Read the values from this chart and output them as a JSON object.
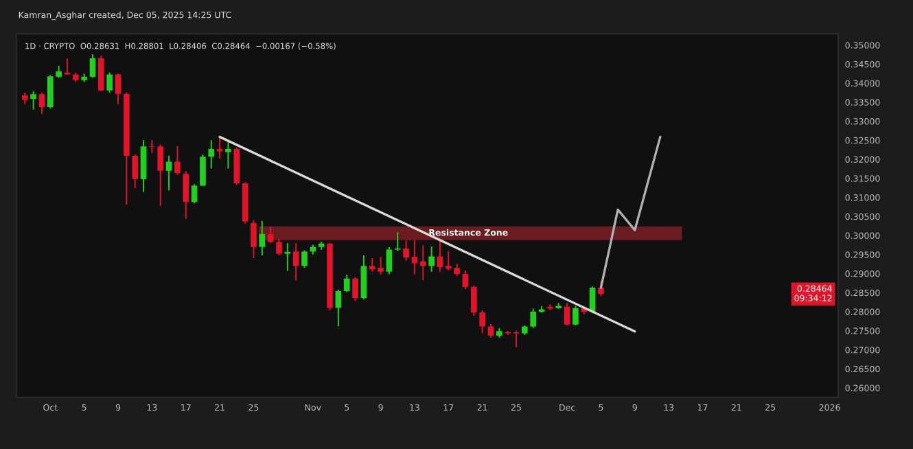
{
  "chart_data": {
    "type": "candlestick",
    "title": "Kamran_Asghar created, Dec 05, 2025 14:25 UTC",
    "subtitle": "1D · CRYPTO  O0.28631  H0.28801  L0.28406  C0.28464  −0.00167 (−0.58%)",
    "x": [
      "2025-09-28",
      "2025-09-29",
      "2025-09-30",
      "2025-10-01",
      "2025-10-02",
      "2025-10-03",
      "2025-10-04",
      "2025-10-05",
      "2025-10-06",
      "2025-10-07",
      "2025-10-08",
      "2025-10-09",
      "2025-10-10",
      "2025-10-11",
      "2025-10-12",
      "2025-10-13",
      "2025-10-14",
      "2025-10-15",
      "2025-10-16",
      "2025-10-17",
      "2025-10-18",
      "2025-10-19",
      "2025-10-20",
      "2025-10-21",
      "2025-10-22",
      "2025-10-23",
      "2025-10-24",
      "2025-10-25",
      "2025-10-26",
      "2025-10-27",
      "2025-10-28",
      "2025-10-29",
      "2025-10-30",
      "2025-10-31",
      "2025-11-01",
      "2025-11-02",
      "2025-11-03",
      "2025-11-04",
      "2025-11-05",
      "2025-11-06",
      "2025-11-07",
      "2025-11-08",
      "2025-11-09",
      "2025-11-10",
      "2025-11-11",
      "2025-11-12",
      "2025-11-13",
      "2025-11-14",
      "2025-11-15",
      "2025-11-16",
      "2025-11-17",
      "2025-11-18",
      "2025-11-19",
      "2025-11-20",
      "2025-11-21",
      "2025-11-22",
      "2025-11-23",
      "2025-11-24",
      "2025-11-25",
      "2025-11-26",
      "2025-11-27",
      "2025-11-28",
      "2025-11-29",
      "2025-11-30",
      "2025-12-01",
      "2025-12-02",
      "2025-12-03",
      "2025-12-04",
      "2025-12-05"
    ],
    "ohlc": [
      [
        0.3368,
        0.3375,
        0.3345,
        0.3356
      ],
      [
        0.3359,
        0.3379,
        0.3331,
        0.3371
      ],
      [
        0.3371,
        0.3375,
        0.3319,
        0.3337
      ],
      [
        0.3337,
        0.3421,
        0.3333,
        0.3418
      ],
      [
        0.3417,
        0.3446,
        0.3414,
        0.3431
      ],
      [
        0.3428,
        0.3465,
        0.3422,
        0.3423
      ],
      [
        0.3423,
        0.3428,
        0.3403,
        0.3408
      ],
      [
        0.3408,
        0.3425,
        0.3403,
        0.3417
      ],
      [
        0.3417,
        0.3476,
        0.3414,
        0.3465
      ],
      [
        0.3465,
        0.3473,
        0.3379,
        0.3381
      ],
      [
        0.3381,
        0.3428,
        0.3375,
        0.3423
      ],
      [
        0.3423,
        0.3425,
        0.3345,
        0.3372
      ],
      [
        0.3372,
        0.3375,
        0.3081,
        0.3209
      ],
      [
        0.3209,
        0.3213,
        0.3125,
        0.3148
      ],
      [
        0.3148,
        0.325,
        0.3114,
        0.3234
      ],
      [
        0.3234,
        0.325,
        0.3217,
        0.3232
      ],
      [
        0.3234,
        0.3239,
        0.3078,
        0.317
      ],
      [
        0.317,
        0.3209,
        0.3118,
        0.3194
      ],
      [
        0.3194,
        0.3235,
        0.3159,
        0.3164
      ],
      [
        0.3162,
        0.3169,
        0.3044,
        0.3088
      ],
      [
        0.3088,
        0.3135,
        0.3084,
        0.3131
      ],
      [
        0.3131,
        0.3213,
        0.313,
        0.3207
      ],
      [
        0.3207,
        0.325,
        0.3176,
        0.3227
      ],
      [
        0.3227,
        0.3261,
        0.3202,
        0.3221
      ],
      [
        0.3219,
        0.325,
        0.3176,
        0.3227
      ],
      [
        0.3227,
        0.3231,
        0.3133,
        0.3137
      ],
      [
        0.3137,
        0.314,
        0.3031,
        0.3037
      ],
      [
        0.3033,
        0.3041,
        0.294,
        0.297
      ],
      [
        0.297,
        0.3038,
        0.2948,
        0.3004
      ],
      [
        0.3004,
        0.3023,
        0.298,
        0.2983
      ],
      [
        0.2983,
        0.2991,
        0.2948,
        0.2952
      ],
      [
        0.2952,
        0.298,
        0.2907,
        0.2957
      ],
      [
        0.2958,
        0.298,
        0.2882,
        0.292
      ],
      [
        0.292,
        0.2961,
        0.2915,
        0.2958
      ],
      [
        0.2958,
        0.2976,
        0.295,
        0.297
      ],
      [
        0.297,
        0.2984,
        0.2962,
        0.2979
      ],
      [
        0.2979,
        0.298,
        0.2804,
        0.281
      ],
      [
        0.281,
        0.2858,
        0.2762,
        0.2854
      ],
      [
        0.2854,
        0.2897,
        0.2851,
        0.2887
      ],
      [
        0.2887,
        0.2891,
        0.2828,
        0.2836
      ],
      [
        0.2836,
        0.2948,
        0.2832,
        0.292
      ],
      [
        0.292,
        0.294,
        0.2905,
        0.2911
      ],
      [
        0.2915,
        0.2944,
        0.2898,
        0.2905
      ],
      [
        0.2905,
        0.297,
        0.2898,
        0.2963
      ],
      [
        0.2963,
        0.3009,
        0.2959,
        0.2966
      ],
      [
        0.2966,
        0.2988,
        0.2934,
        0.2942
      ],
      [
        0.2944,
        0.2988,
        0.2898,
        0.2927
      ],
      [
        0.2932,
        0.2974,
        0.2882,
        0.292
      ],
      [
        0.292,
        0.2971,
        0.2905,
        0.2945
      ],
      [
        0.2945,
        0.2986,
        0.2905,
        0.2917
      ],
      [
        0.292,
        0.2959,
        0.2908,
        0.2913
      ],
      [
        0.2915,
        0.2926,
        0.2894,
        0.2899
      ],
      [
        0.2899,
        0.2908,
        0.2859,
        0.2865
      ],
      [
        0.2865,
        0.2869,
        0.2789,
        0.2798
      ],
      [
        0.2798,
        0.2803,
        0.2743,
        0.2761
      ],
      [
        0.2761,
        0.2768,
        0.2732,
        0.2737
      ],
      [
        0.2737,
        0.2757,
        0.2732,
        0.2749
      ],
      [
        0.2746,
        0.275,
        0.2739,
        0.2743
      ],
      [
        0.2746,
        0.275,
        0.2706,
        0.2743
      ],
      [
        0.2743,
        0.2764,
        0.2739,
        0.2761
      ],
      [
        0.2761,
        0.2808,
        0.2757,
        0.28
      ],
      [
        0.2799,
        0.2815,
        0.2798,
        0.2806
      ],
      [
        0.2813,
        0.2819,
        0.2804,
        0.2808
      ],
      [
        0.2809,
        0.2823,
        0.2808,
        0.2815
      ],
      [
        0.2813,
        0.2823,
        0.2764,
        0.2766
      ],
      [
        0.2766,
        0.2815,
        0.2764,
        0.2809
      ],
      [
        0.2809,
        0.2815,
        0.2793,
        0.28
      ],
      [
        0.28,
        0.2866,
        0.2796,
        0.2863
      ],
      [
        0.28631,
        0.28801,
        0.28406,
        0.28464
      ]
    ],
    "colors": [
      "#e2142a",
      "#22d11f",
      "#e2142a",
      "#22d11f",
      "#22d11f",
      "#e2142a",
      "#e2142a",
      "#22d11f",
      "#22d11f",
      "#e2142a",
      "#22d11f",
      "#e2142a",
      "#e2142a",
      "#e2142a",
      "#22d11f",
      "#e2142a",
      "#e2142a",
      "#22d11f",
      "#e2142a",
      "#e2142a",
      "#22d11f",
      "#22d11f",
      "#22d11f",
      "#e2142a",
      "#22d11f",
      "#e2142a",
      "#e2142a",
      "#e2142a",
      "#22d11f",
      "#e2142a",
      "#e2142a",
      "#22d11f",
      "#e2142a",
      "#22d11f",
      "#22d11f",
      "#22d11f",
      "#e2142a",
      "#22d11f",
      "#22d11f",
      "#e2142a",
      "#22d11f",
      "#e2142a",
      "#e2142a",
      "#22d11f",
      "#22d11f",
      "#e2142a",
      "#e2142a",
      "#e2142a",
      "#22d11f",
      "#e2142a",
      "#e2142a",
      "#e2142a",
      "#e2142a",
      "#e2142a",
      "#e2142a",
      "#e2142a",
      "#22d11f",
      "#e2142a",
      "#e2142a",
      "#22d11f",
      "#22d11f",
      "#22d11f",
      "#e2142a",
      "#22d11f",
      "#e2142a",
      "#22d11f",
      "#e2142a",
      "#22d11f",
      "#e2142a"
    ],
    "series": [
      {
        "type": "line",
        "color": "#d9d9d9",
        "x": [
          "2025-10-21",
          "2025-12-09"
        ],
        "values": [
          0.3259,
          0.2748
        ]
      },
      {
        "type": "line",
        "color": "#b0b0b0",
        "x": [
          "2025-12-05",
          "2025-12-07",
          "2025-12-09",
          "2025-12-12"
        ],
        "values": [
          0.2863,
          0.3068,
          0.3014,
          0.3259
        ]
      }
    ],
    "bands": [
      {
        "axis": "y",
        "from": 0.2988,
        "to": 0.3024,
        "label": "Resistance Zone",
        "color": "#7a1f24"
      }
    ],
    "annotations": [
      {
        "text": "0.28464\n09:34:12",
        "y": 0.28464
      }
    ],
    "xlim": [
      "2025-09-27",
      "2026-01-02"
    ],
    "xticks": [
      {
        "value": "2025-10-01",
        "label": "Oct"
      },
      {
        "value": "2025-10-05",
        "label": "5"
      },
      {
        "value": "2025-10-09",
        "label": "9"
      },
      {
        "value": "2025-10-13",
        "label": "13"
      },
      {
        "value": "2025-10-17",
        "label": "17"
      },
      {
        "value": "2025-10-21",
        "label": "21"
      },
      {
        "value": "2025-10-25",
        "label": "25"
      },
      {
        "value": "2025-11-01",
        "label": "Nov"
      },
      {
        "value": "2025-11-05",
        "label": "5"
      },
      {
        "value": "2025-11-09",
        "label": "9"
      },
      {
        "value": "2025-11-13",
        "label": "13"
      },
      {
        "value": "2025-11-17",
        "label": "17"
      },
      {
        "value": "2025-11-21",
        "label": "21"
      },
      {
        "value": "2025-11-25",
        "label": "25"
      },
      {
        "value": "2025-12-01",
        "label": "Dec"
      },
      {
        "value": "2025-12-05",
        "label": "5"
      },
      {
        "value": "2025-12-09",
        "label": "9"
      },
      {
        "value": "2025-12-13",
        "label": "13"
      },
      {
        "value": "2025-12-17",
        "label": "17"
      },
      {
        "value": "2025-12-21",
        "label": "21"
      },
      {
        "value": "2025-12-25",
        "label": "25"
      },
      {
        "value": "2026-01-01",
        "label": "2026"
      }
    ],
    "ylim": [
      0.2575,
      0.353
    ],
    "yticks": [
      {
        "value": 0.26,
        "label": "0.26000"
      },
      {
        "value": 0.265,
        "label": "0.26500"
      },
      {
        "value": 0.27,
        "label": "0.27000"
      },
      {
        "value": 0.275,
        "label": "0.27500"
      },
      {
        "value": 0.28,
        "label": "0.28000"
      },
      {
        "value": 0.285,
        "label": "0.28500"
      },
      {
        "value": 0.29,
        "label": "0.29000"
      },
      {
        "value": 0.295,
        "label": "0.29500"
      },
      {
        "value": 0.3,
        "label": "0.30000"
      },
      {
        "value": 0.305,
        "label": "0.30500"
      },
      {
        "value": 0.31,
        "label": "0.31000"
      },
      {
        "value": 0.315,
        "label": "0.31500"
      },
      {
        "value": 0.32,
        "label": "0.32000"
      },
      {
        "value": 0.325,
        "label": "0.32500"
      },
      {
        "value": 0.33,
        "label": "0.33000"
      },
      {
        "value": 0.335,
        "label": "0.33500"
      },
      {
        "value": 0.34,
        "label": "0.34000"
      },
      {
        "value": 0.345,
        "label": "0.34500"
      },
      {
        "value": 0.35,
        "label": "0.35000"
      }
    ],
    "grid": false
  }
}
